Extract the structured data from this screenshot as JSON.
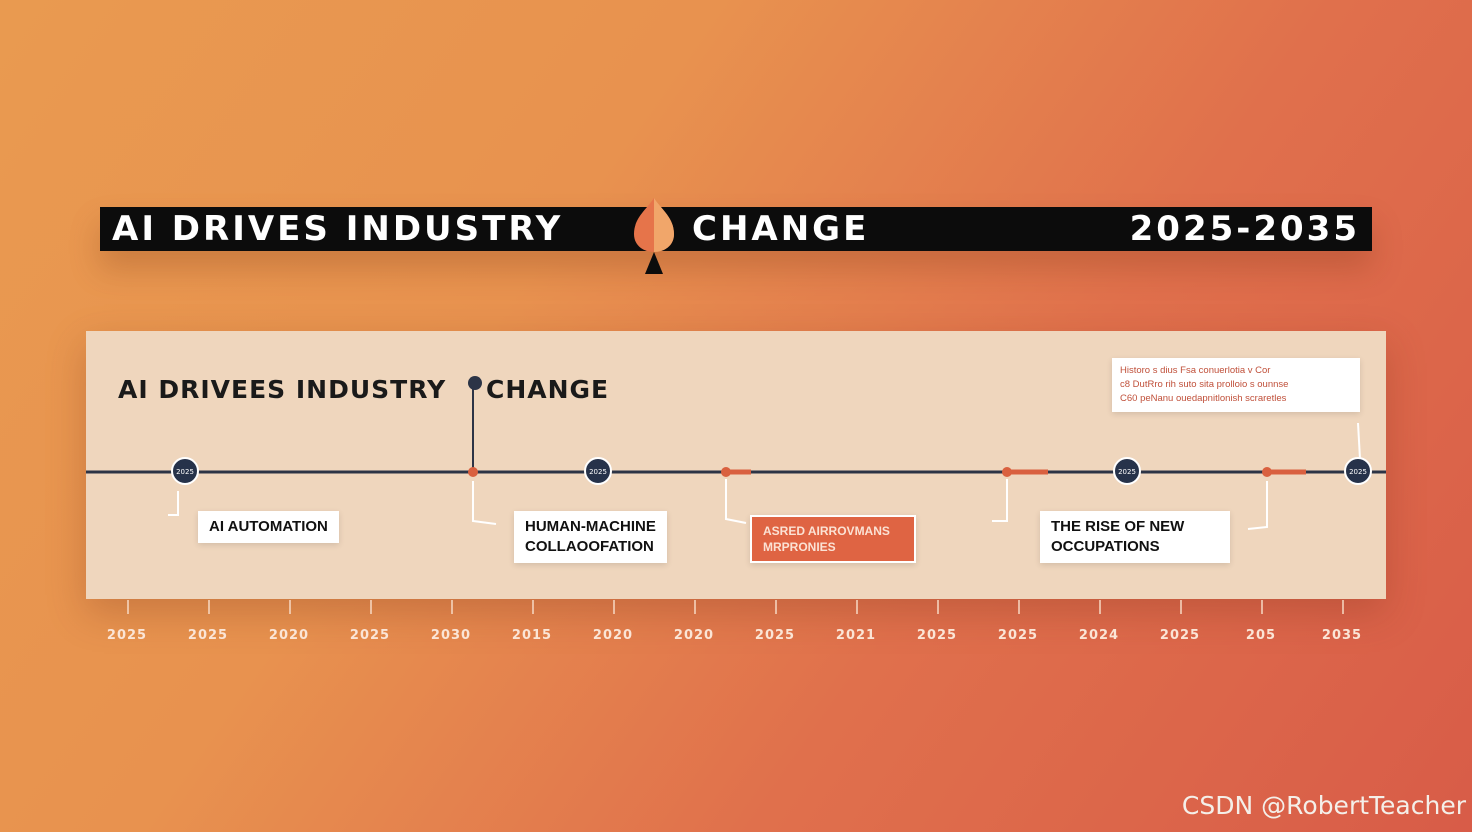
{
  "header": {
    "title_part1": "AI DRIVES INDUSTRY",
    "title_part2": "CHANGE",
    "years": "2025-2035"
  },
  "panel": {
    "title_part1": "AI DRIVEES INDUSTRY",
    "title_part2": "CHANGE",
    "note_lines": [
      "Historo s dius Fsa conuerlotia v Cor",
      "c8 DutRro rih suto sita prolloio s ounnse",
      "C60 peNanu ouedapnitlonish scraretles"
    ]
  },
  "milestones": [
    {
      "label": "AI AUTOMATION"
    },
    {
      "label": "HUMAN-MACHINE COLLAOOFATION",
      "line1": "HUMAN-MACHINE",
      "line2": "COLLAOOFATION"
    },
    {
      "label": "ASRED AIRROVMANS MRPRONIES",
      "line1": "ASRED AIRROVMANS",
      "line2": "MRPRONIES"
    },
    {
      "label": "THE RISE OF NEW OCCUPATIONS",
      "line1": "THE RISE OF NEW",
      "line2": "OCCUPATIONS"
    }
  ],
  "node_label": "2025",
  "axis_years": [
    "2025",
    "2025",
    "2020",
    "2025",
    "2030",
    "2015",
    "2020",
    "2020",
    "2025",
    "2021",
    "2025",
    "2025",
    "2024",
    "2025",
    "205",
    "2035"
  ],
  "colors": {
    "accent": "#d9603f",
    "node": "#26324a",
    "banner": "#0c0c0c",
    "panel": "#efd6bd"
  },
  "watermark": "CSDN @RobertTeacher"
}
